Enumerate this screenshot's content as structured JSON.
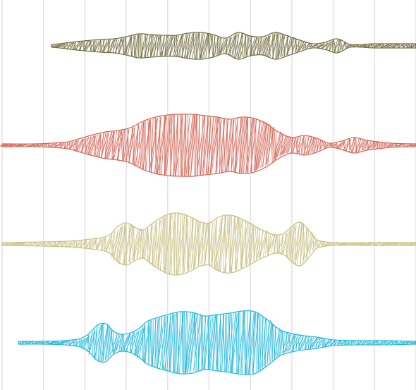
{
  "chart_data": {
    "type": "area",
    "subtype": "violin-ridgeline",
    "style": "sketchy-hatch",
    "title": "",
    "xlabel": "",
    "ylabel": "",
    "xlim": [
      0,
      100
    ],
    "grid": true,
    "grid_x": [
      0,
      10,
      20,
      30,
      40,
      50,
      60,
      70,
      80,
      90,
      100
    ],
    "legend": "none",
    "series": [
      {
        "color": "#6f6a3b",
        "x": [
          12,
          18,
          24,
          27,
          30,
          33,
          36,
          39,
          42,
          45,
          48,
          51,
          54,
          57,
          60,
          63,
          66,
          69,
          72,
          75,
          78,
          81,
          84,
          90,
          100
        ],
        "width": [
          2,
          6,
          9,
          10,
          13,
          17,
          16,
          15,
          15,
          18,
          19,
          16,
          11,
          19,
          14,
          13,
          19,
          14,
          8,
          3,
          5,
          10,
          2,
          3,
          3
        ]
      },
      {
        "color": "#d36354",
        "x": [
          0,
          8,
          12,
          16,
          19,
          22,
          25,
          28,
          31,
          34,
          37,
          40,
          43,
          46,
          49,
          52,
          55,
          58,
          61,
          64,
          67,
          70,
          73,
          76,
          79,
          82,
          85,
          88,
          94,
          100
        ],
        "width": [
          2,
          2,
          3,
          5,
          10,
          15,
          19,
          21,
          25,
          34,
          40,
          43,
          44,
          44,
          42,
          40,
          37,
          40,
          38,
          30,
          18,
          11,
          14,
          10,
          3,
          6,
          11,
          7,
          3,
          2
        ]
      },
      {
        "color": "#c8be81",
        "x": [
          0,
          10,
          16,
          20,
          24,
          26,
          28,
          30,
          32,
          34,
          36,
          38,
          40,
          42,
          44,
          46,
          48,
          50,
          52,
          54,
          56,
          58,
          60,
          62,
          64,
          66,
          68,
          70,
          72,
          74,
          76,
          80,
          90,
          100
        ],
        "width": [
          2,
          3,
          4,
          6,
          9,
          13,
          25,
          30,
          24,
          20,
          28,
          36,
          42,
          44,
          42,
          37,
          31,
          30,
          37,
          41,
          40,
          35,
          29,
          22,
          17,
          13,
          15,
          25,
          31,
          20,
          6,
          2,
          2,
          2
        ]
      },
      {
        "color": "#1fb5d8",
        "x": [
          4,
          10,
          15,
          19,
          21,
          23,
          25,
          27,
          29,
          31,
          33,
          35,
          37,
          40,
          43,
          46,
          49,
          52,
          55,
          58,
          61,
          64,
          67,
          70,
          73,
          76,
          80,
          86,
          93,
          100
        ],
        "width": [
          2,
          2,
          3,
          6,
          13,
          25,
          27,
          16,
          12,
          14,
          20,
          30,
          35,
          40,
          44,
          43,
          38,
          40,
          42,
          45,
          44,
          33,
          19,
          13,
          10,
          8,
          4,
          3,
          3,
          2
        ]
      }
    ]
  }
}
